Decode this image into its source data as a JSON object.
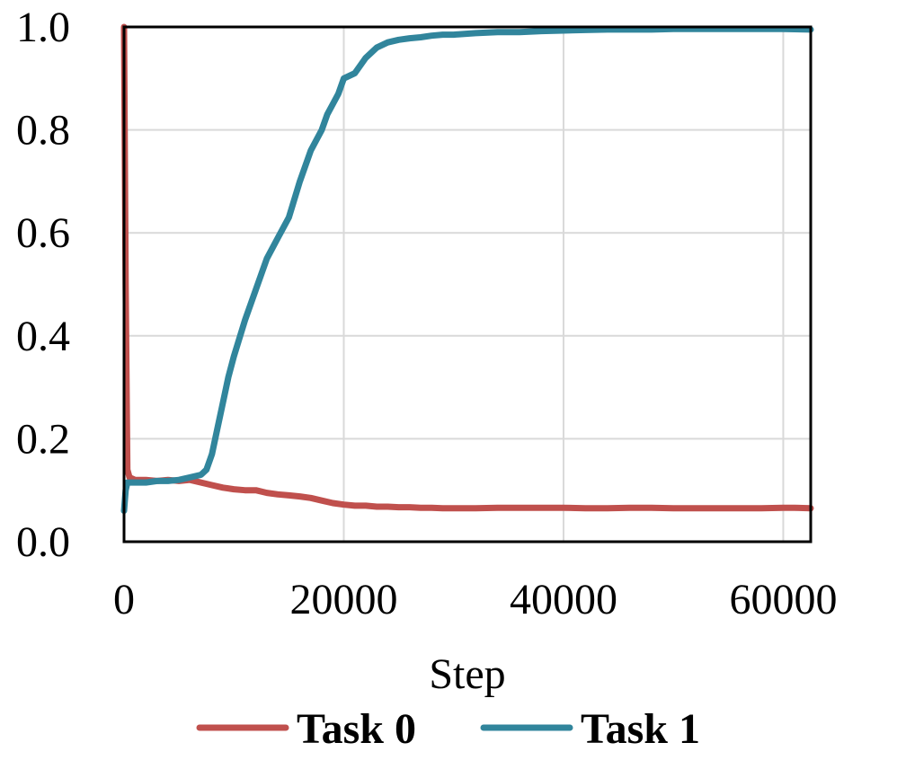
{
  "chart_data": {
    "type": "line",
    "title": "",
    "xlabel": "Step",
    "ylabel": "",
    "xlim": [
      0,
      62500
    ],
    "ylim": [
      0,
      1.0
    ],
    "xticks": [
      0,
      20000,
      40000,
      60000
    ],
    "xtick_labels": [
      "0",
      "20000",
      "40000",
      "60000"
    ],
    "yticks": [
      0.0,
      0.2,
      0.4,
      0.6,
      0.8,
      1.0
    ],
    "ytick_labels": [
      "0.0",
      "0.2",
      "0.4",
      "0.6",
      "0.8",
      "1.0"
    ],
    "grid": true,
    "legend_position": "bottom",
    "series": [
      {
        "name": "Task 0",
        "color": "#c0504d",
        "x": [
          0,
          150,
          300,
          500,
          1000,
          2000,
          3000,
          4000,
          5000,
          6000,
          7000,
          8000,
          9000,
          10000,
          11000,
          12000,
          13000,
          14000,
          15000,
          16000,
          17000,
          18000,
          19000,
          20000,
          21000,
          22000,
          23000,
          24000,
          25000,
          26000,
          27000,
          28000,
          29000,
          30000,
          32000,
          34000,
          36000,
          38000,
          40000,
          42000,
          44000,
          46000,
          48000,
          50000,
          52000,
          54000,
          56000,
          58000,
          60000,
          61000,
          62500
        ],
        "y": [
          1.0,
          0.5,
          0.14,
          0.125,
          0.12,
          0.12,
          0.118,
          0.12,
          0.118,
          0.12,
          0.115,
          0.11,
          0.105,
          0.102,
          0.1,
          0.1,
          0.095,
          0.092,
          0.09,
          0.088,
          0.085,
          0.08,
          0.075,
          0.072,
          0.07,
          0.07,
          0.068,
          0.068,
          0.067,
          0.067,
          0.066,
          0.066,
          0.065,
          0.065,
          0.065,
          0.066,
          0.066,
          0.066,
          0.066,
          0.065,
          0.065,
          0.066,
          0.066,
          0.065,
          0.065,
          0.065,
          0.065,
          0.065,
          0.066,
          0.066,
          0.065
        ]
      },
      {
        "name": "Task 1",
        "color": "#31859c",
        "x": [
          0,
          150,
          300,
          500,
          1000,
          2000,
          3000,
          4000,
          5000,
          6000,
          7000,
          7500,
          8000,
          8500,
          9000,
          9500,
          10000,
          11000,
          12000,
          13000,
          14000,
          15000,
          16000,
          17000,
          18000,
          18500,
          19000,
          19500,
          20000,
          21000,
          22000,
          23000,
          24000,
          25000,
          26000,
          27000,
          28000,
          29000,
          30000,
          32000,
          34000,
          36000,
          38000,
          40000,
          42000,
          44000,
          46000,
          48000,
          50000,
          52000,
          54000,
          56000,
          58000,
          60000,
          62500
        ],
        "y": [
          0.06,
          0.1,
          0.115,
          0.115,
          0.115,
          0.115,
          0.118,
          0.118,
          0.12,
          0.125,
          0.13,
          0.14,
          0.17,
          0.22,
          0.27,
          0.32,
          0.36,
          0.43,
          0.49,
          0.55,
          0.59,
          0.63,
          0.7,
          0.76,
          0.8,
          0.83,
          0.85,
          0.87,
          0.9,
          0.91,
          0.94,
          0.96,
          0.97,
          0.975,
          0.978,
          0.98,
          0.983,
          0.985,
          0.985,
          0.988,
          0.99,
          0.99,
          0.992,
          0.993,
          0.994,
          0.995,
          0.995,
          0.995,
          0.996,
          0.996,
          0.996,
          0.996,
          0.996,
          0.996,
          0.995
        ]
      }
    ]
  }
}
